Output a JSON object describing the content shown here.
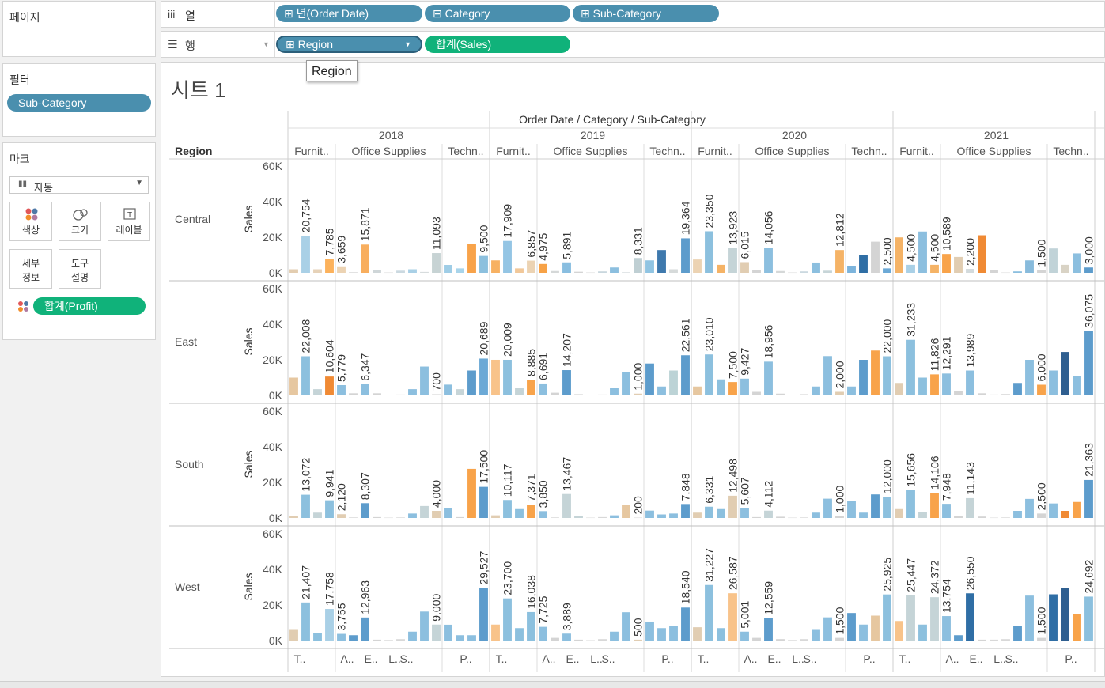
{
  "left": {
    "pages_title": "페이지",
    "filters_title": "필터",
    "filter_pill": "Sub-Category",
    "marks_title": "마크",
    "mark_type": "자동",
    "btn_color": "색상",
    "btn_size": "크기",
    "btn_label": "레이블",
    "btn_detail_1": "세부",
    "btn_detail_2": "정보",
    "btn_tooltip_1": "도구",
    "btn_tooltip_2": "설명",
    "color_pill": "합계(Profit)"
  },
  "shelves": {
    "columns_label": "열",
    "rows_label": "행",
    "col_pills": [
      "년(Order Date)",
      "Category",
      "Sub-Category"
    ],
    "row_pills": [
      "Region",
      "합계(Sales)"
    ],
    "tooltip": "Region"
  },
  "sheet": {
    "title": "시트 1",
    "header_title": "Order Date  /  Category  /  Sub-Category",
    "region_header": "Region",
    "measure_label": "Sales",
    "category_short": [
      "Furnit..",
      "Office Supplies",
      "Techn.."
    ],
    "bottom_labels": {
      "Furniture": [
        [
          0.5,
          "T.."
        ]
      ],
      "Office Supplies": [
        [
          0.5,
          "A.."
        ],
        [
          2.5,
          "E.."
        ],
        [
          4.5,
          "L.."
        ],
        [
          5.5,
          "S.."
        ]
      ],
      "Technology": [
        [
          1.5,
          "P.."
        ]
      ]
    }
  },
  "chart_data": {
    "type": "bar",
    "title": "시트 1",
    "ylabel": "Sales",
    "ylim": [
      0,
      60000
    ],
    "yticks": [
      "60K",
      "40K",
      "20K",
      "0K"
    ],
    "yticks_values": [
      60000,
      40000,
      20000,
      0
    ],
    "years": [
      "2018",
      "2019",
      "2020",
      "2021"
    ],
    "regions": [
      "Central",
      "East",
      "South",
      "West"
    ],
    "categories": [
      {
        "name": "Furniture",
        "count": 4
      },
      {
        "name": "Office Supplies",
        "count": 9
      },
      {
        "name": "Technology",
        "count": 4
      }
    ],
    "label_sub_indices": [
      1,
      3,
      0,
      3,
      8,
      2
    ],
    "series": {
      "Central": {
        "2018": [
          2000,
          20754,
          2000,
          7785,
          3659,
          300,
          15871,
          1500,
          200,
          1200,
          2000,
          500,
          11093,
          4439,
          2500,
          16292,
          9500
        ],
        "2019": [
          7000,
          17909,
          2500,
          6857,
          4975,
          1000,
          5891,
          600,
          200,
          800,
          3000,
          300,
          8331,
          7000,
          12810,
          2000,
          19364
        ],
        "2020": [
          7500,
          23350,
          4500,
          13923,
          6015,
          1500,
          14056,
          1000,
          200,
          800,
          5800,
          1200,
          12812,
          4000,
          10000,
          17500,
          2500
        ],
        "2021": [
          19902,
          4500,
          23218,
          4500,
          10589,
          8933,
          2200,
          21105,
          1500,
          200,
          800,
          7000,
          1500,
          13694,
          4500,
          10920,
          3000
        ]
      },
      "East": {
        "2018": [
          10000,
          22008,
          3500,
          10604,
          5779,
          1200,
          6347,
          1200,
          300,
          500,
          3500,
          16207,
          700,
          6054,
          3500,
          14000,
          20689
        ],
        "2019": [
          20009,
          20009,
          4000,
          8885,
          6691,
          1500,
          14207,
          700,
          300,
          500,
          4000,
          13309,
          1000,
          17911,
          5000,
          14000,
          22561
        ],
        "2020": [
          5000,
          23010,
          9000,
          7500,
          9427,
          2000,
          18956,
          1000,
          300,
          700,
          5000,
          22096,
          2000,
          5000,
          20000,
          25216,
          22000
        ],
        "2021": [
          7000,
          31233,
          10000,
          11826,
          12291,
          2500,
          13989,
          1200,
          500,
          800,
          7000,
          20000,
          6000,
          14000,
          24400,
          11000,
          36075
        ]
      },
      "South": {
        "2018": [
          1000,
          13072,
          3000,
          9941,
          2120,
          300,
          8307,
          500,
          200,
          300,
          2500,
          6715,
          4000,
          5595,
          500,
          27595,
          17500
        ],
        "2019": [
          1500,
          10117,
          5000,
          7371,
          3850,
          300,
          13467,
          1200,
          200,
          500,
          1500,
          7487,
          200,
          4142,
          2000,
          2500,
          7848
        ],
        "2020": [
          3000,
          6331,
          5000,
          12498,
          5607,
          500,
          4112,
          700,
          200,
          300,
          3000,
          10840,
          1000,
          9380,
          3000,
          13239,
          12000
        ],
        "2021": [
          5000,
          15656,
          3500,
          14106,
          7948,
          1000,
          11143,
          800,
          200,
          300,
          4000,
          10725,
          2500,
          8160,
          4000,
          9000,
          21363
        ]
      },
      "West": {
        "2018": [
          6000,
          21407,
          4000,
          17758,
          3755,
          3000,
          12963,
          500,
          300,
          800,
          5000,
          16313,
          9000,
          8926,
          3000,
          3000,
          29527
        ],
        "2019": [
          9000,
          23700,
          7000,
          16038,
          7725,
          1500,
          3889,
          500,
          200,
          800,
          5000,
          15920,
          500,
          10676,
          7000,
          8000,
          18540
        ],
        "2020": [
          7500,
          31227,
          7000,
          26587,
          5001,
          1500,
          12559,
          800,
          300,
          800,
          6000,
          13041,
          1500,
          15482,
          9000,
          14000,
          25925
        ],
        "2021": [
          11000,
          25447,
          9000,
          24372,
          13754,
          3000,
          26550,
          500,
          500,
          800,
          8000,
          25258,
          1500,
          26000,
          29460,
          15000,
          24692
        ]
      }
    },
    "colors": {
      "Central": {
        "2018": [
          "#e3cdb0",
          "#a9d0e6",
          "#e6d2b8",
          "#fcb25c",
          "#ecd3b3",
          "#d4d4d4",
          "#f8ae5e",
          "#cfd6d8",
          "#d8d8d8",
          "#cbd9e0",
          "#a9d0e6",
          "#d7dcdd",
          "#c7d3d4",
          "#9fcde6",
          "#a8d4ea",
          "#f8a34a",
          "#8cc0de"
        ],
        "2019": [
          "#f7b162",
          "#94c5e4",
          "#f1c89a",
          "#ecd3b3",
          "#f7a247",
          "#d5d8d8",
          "#89bee0",
          "#d4d4d4",
          "#d8d8d8",
          "#c9d7de",
          "#8cbfdf",
          "#d3dadc",
          "#bfcfd3",
          "#90c4e2",
          "#3e79ad",
          "#d6dada",
          "#5d9ccc"
        ],
        "2020": [
          "#ecd3b3",
          "#8cc0de",
          "#f5b366",
          "#c5d4d7",
          "#e1cdb2",
          "#d4d4d4",
          "#8cbfdf",
          "#d5d8d8",
          "#d8d8d8",
          "#cbd9e0",
          "#8cbfdf",
          "#c7d5d8",
          "#f5b366",
          "#7cb4dc",
          "#2f6ea5",
          "#d4d4d4",
          "#6ca9d6"
        ],
        "2021": [
          "#f5b366",
          "#a9d0e6",
          "#8cbfdf",
          "#f5b366",
          "#f8a34a",
          "#e1cdb2",
          "#d3dadc",
          "#f08a34",
          "#d4d4d4",
          "#d8d8d8",
          "#8cbfdf",
          "#88bbdc",
          "#d4d4d4",
          "#c1d3d8",
          "#d9d3c5",
          "#8cbfdf",
          "#5d9ccc"
        ]
      },
      "East": {
        "2018": [
          "#e6c7a0",
          "#8cc0de",
          "#c5d4d7",
          "#f08a34",
          "#8cbfdf",
          "#d4d4d4",
          "#8cbfdf",
          "#d4d4d4",
          "#d8d8d8",
          "#d8d8d8",
          "#8cbfdf",
          "#8cbfdf",
          "#d8d8d8",
          "#8cbfdf",
          "#c7d5d8",
          "#5d9ccc",
          "#6ca9d6"
        ],
        "2019": [
          "#f8c38a",
          "#8cc0de",
          "#c5d4d7",
          "#f8a34a",
          "#8cbfdf",
          "#d4d4d4",
          "#5d9ccc",
          "#d4d4d4",
          "#d8d8d8",
          "#d8d8d8",
          "#8cbfdf",
          "#8cbfdf",
          "#e1cdb2",
          "#5d9ccc",
          "#8cbfdf",
          "#bcd3d6",
          "#5d9ccc"
        ],
        "2020": [
          "#e6c7a0",
          "#8cc0de",
          "#8cc0de",
          "#f8a34a",
          "#8cbfdf",
          "#d4d4d4",
          "#8cbfdf",
          "#d4d4d4",
          "#d8d8d8",
          "#d8d8d8",
          "#8cbfdf",
          "#8cbfdf",
          "#e1cdb2",
          "#8cbfdf",
          "#5d9ccc",
          "#f8a34a",
          "#8cc0de"
        ],
        "2021": [
          "#e1cdb2",
          "#8cc0de",
          "#8cc0de",
          "#f8a34a",
          "#8cbfdf",
          "#d4d4d4",
          "#8cbfdf",
          "#d4d4d4",
          "#d8d8d8",
          "#d8d8d8",
          "#5d9ccc",
          "#8cbfdf",
          "#f8a34a",
          "#8cbfdf",
          "#2f5f90",
          "#8cbfdf",
          "#5d9ccc"
        ]
      },
      "South": {
        "2018": [
          "#e1cdb2",
          "#8cc0de",
          "#c5d4d7",
          "#8cc0de",
          "#e1cdb2",
          "#d4d4d4",
          "#5d9ccc",
          "#d4d4d4",
          "#d8d8d8",
          "#d8d8d8",
          "#8cbfdf",
          "#c5d4d7",
          "#e1cdb2",
          "#8cbfdf",
          "#d4d4d4",
          "#f8a34a",
          "#5d9ccc"
        ],
        "2019": [
          "#e1cdb2",
          "#8cc0de",
          "#8cc0de",
          "#f8a34a",
          "#8cbfdf",
          "#d4d4d4",
          "#c5d4d7",
          "#c5d4d7",
          "#d8d8d8",
          "#d8d8d8",
          "#8cbfdf",
          "#e6c7a0",
          "#d4d4d4",
          "#8cbfdf",
          "#8cbfdf",
          "#8cbfdf",
          "#5d9ccc"
        ],
        "2020": [
          "#e1cdb2",
          "#8cc0de",
          "#8cc0de",
          "#e1cdb2",
          "#8cbfdf",
          "#d4d4d4",
          "#c5d4d7",
          "#d4d4d4",
          "#d8d8d8",
          "#d8d8d8",
          "#8cbfdf",
          "#8cbfdf",
          "#d4d4d4",
          "#8cbfdf",
          "#8cbfdf",
          "#5d9ccc",
          "#8cc0de"
        ],
        "2021": [
          "#e1cdb2",
          "#8cc0de",
          "#c5d4d7",
          "#f8a34a",
          "#8cbfdf",
          "#d4d4d4",
          "#c5d4d7",
          "#d4d4d4",
          "#d8d8d8",
          "#d8d8d8",
          "#8cbfdf",
          "#8cbfdf",
          "#d4d4d4",
          "#8cbfdf",
          "#f08a34",
          "#f8a34a",
          "#5d9ccc"
        ]
      },
      "West": {
        "2018": [
          "#e1cdb2",
          "#8cc0de",
          "#8cc0de",
          "#a9d0e6",
          "#8cbfdf",
          "#5d9ccc",
          "#5d9ccc",
          "#d4d4d4",
          "#d8d8d8",
          "#d8d8d8",
          "#8cbfdf",
          "#8cbfdf",
          "#c5d4d7",
          "#8cbfdf",
          "#8cbfdf",
          "#8cbfdf",
          "#5d9ccc"
        ],
        "2019": [
          "#f8c38a",
          "#8cc0de",
          "#8cc0de",
          "#8cc0de",
          "#8cbfdf",
          "#d4d4d4",
          "#8cbfdf",
          "#d4d4d4",
          "#d8d8d8",
          "#d8d8d8",
          "#8cbfdf",
          "#8cbfdf",
          "#e1cdb2",
          "#8cbfdf",
          "#8cbfdf",
          "#8cbfdf",
          "#5d9ccc"
        ],
        "2020": [
          "#e1cdb2",
          "#8cc0de",
          "#8cc0de",
          "#f8c38a",
          "#8cbfdf",
          "#d4d4d4",
          "#5d9ccc",
          "#d4d4d4",
          "#d8d8d8",
          "#d8d8d8",
          "#8cbfdf",
          "#8cbfdf",
          "#d4d4d4",
          "#5d9ccc",
          "#8cbfdf",
          "#e6c7a0",
          "#8cc0de"
        ],
        "2021": [
          "#f8c38a",
          "#c5d4d7",
          "#8cc0de",
          "#c5d4d7",
          "#8cbfdf",
          "#5d9ccc",
          "#2f6ea5",
          "#d4d4d4",
          "#d8d8d8",
          "#d8d8d8",
          "#5d9ccc",
          "#8cbfdf",
          "#d4d4d4",
          "#2f6ea5",
          "#2f5f90",
          "#f8a34a",
          "#8cc0de"
        ]
      }
    }
  }
}
